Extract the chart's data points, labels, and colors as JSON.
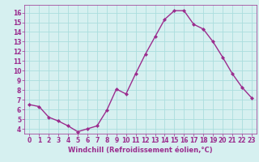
{
  "x": [
    0,
    1,
    2,
    3,
    4,
    5,
    6,
    7,
    8,
    9,
    10,
    11,
    12,
    13,
    14,
    15,
    16,
    17,
    18,
    19,
    20,
    21,
    22,
    23
  ],
  "y": [
    6.5,
    6.3,
    5.2,
    4.8,
    4.3,
    3.7,
    4.0,
    4.3,
    5.9,
    8.1,
    7.6,
    9.7,
    11.7,
    13.5,
    15.3,
    16.2,
    16.2,
    14.8,
    14.3,
    13.0,
    11.4,
    9.7,
    8.3,
    7.2
  ],
  "line_color": "#9b2d8e",
  "marker": "D",
  "marker_size": 2.0,
  "bg_color": "#d6f0f0",
  "grid_color": "#aadddd",
  "xlabel": "Windchill (Refroidissement éolien,°C)",
  "xlabel_color": "#9b2d8e",
  "tick_color": "#9b2d8e",
  "ylim": [
    3.5,
    16.8
  ],
  "xlim": [
    -0.5,
    23.5
  ],
  "yticks": [
    4,
    5,
    6,
    7,
    8,
    9,
    10,
    11,
    12,
    13,
    14,
    15,
    16
  ],
  "xticks": [
    0,
    1,
    2,
    3,
    4,
    5,
    6,
    7,
    8,
    9,
    10,
    11,
    12,
    13,
    14,
    15,
    16,
    17,
    18,
    19,
    20,
    21,
    22,
    23
  ],
  "linewidth": 1.0,
  "tick_labelsize": 5.5,
  "xlabel_fontsize": 6.0
}
